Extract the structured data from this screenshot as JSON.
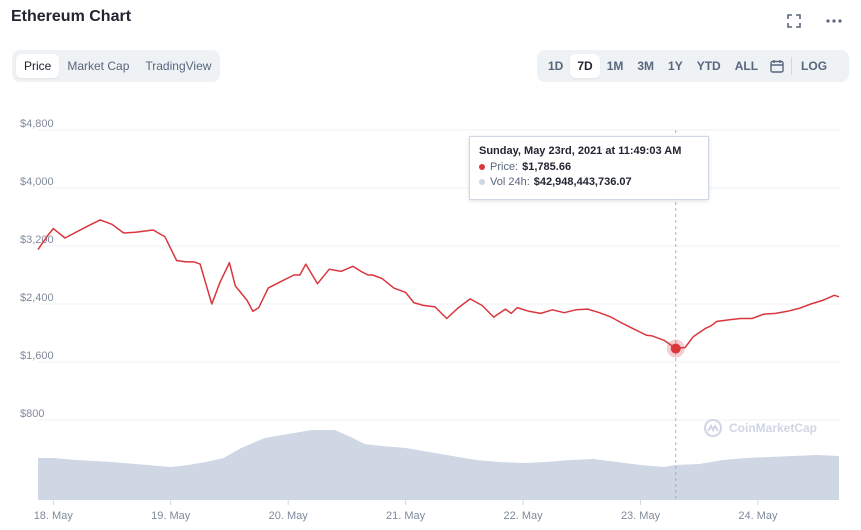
{
  "header": {
    "title": "Ethereum Chart",
    "fullscreen_icon": "fullscreen-icon",
    "more_icon": "more-dots-icon"
  },
  "tabs": [
    {
      "label": "Price",
      "active": true
    },
    {
      "label": "Market Cap",
      "active": false
    },
    {
      "label": "TradingView",
      "active": false
    }
  ],
  "ranges": [
    {
      "label": "1D",
      "active": false
    },
    {
      "label": "7D",
      "active": true
    },
    {
      "label": "1M",
      "active": false
    },
    {
      "label": "3M",
      "active": false
    },
    {
      "label": "1Y",
      "active": false
    },
    {
      "label": "YTD",
      "active": false
    },
    {
      "label": "ALL",
      "active": false
    }
  ],
  "calendar_icon": "calendar-icon",
  "log_label": "LOG",
  "tooltip": {
    "date": "Sunday, May 23rd, 2021 at 11:49:03 AM",
    "price_label": "Price:",
    "price_value": "$1,785.66",
    "vol_label": "Vol 24h:",
    "vol_value": "$42,948,443,736.07"
  },
  "watermark": "CoinMarketCap",
  "colors": {
    "price_line": "#d9363e",
    "volume_fill": "#cfd6e4",
    "grid": "#eff2f5",
    "axis_text": "#808a9d",
    "hover_line": "#a6b0c3"
  },
  "chart_data": {
    "type": "line",
    "y_ticks": [
      "$800",
      "$1,600",
      "$2,400",
      "$3,200",
      "$4,000",
      "$4,800"
    ],
    "y_tick_values": [
      800,
      1600,
      2400,
      3200,
      4000,
      4800
    ],
    "ylim": [
      0,
      5000
    ],
    "x_ticks": [
      "18. May",
      "19. May",
      "20. May",
      "21. May",
      "22. May",
      "23. May",
      "24. May"
    ],
    "x_tick_days": [
      1,
      2,
      3,
      4,
      5,
      6,
      7
    ],
    "xlim": [
      0.87,
      7.69
    ],
    "grid": true,
    "series": [
      {
        "kind": "price",
        "x": [
          0.87,
          0.95,
          1.0,
          1.1,
          1.3,
          1.4,
          1.5,
          1.6,
          1.7,
          1.85,
          1.95,
          2.05,
          2.13,
          2.2,
          2.25,
          2.35,
          2.42,
          2.5,
          2.55,
          2.65,
          2.7,
          2.75,
          2.83,
          2.95,
          3.05,
          3.1,
          3.15,
          3.25,
          3.35,
          3.45,
          3.55,
          3.62,
          3.68,
          3.72,
          3.8,
          3.9,
          4.0,
          4.07,
          4.15,
          4.25,
          4.35,
          4.45,
          4.55,
          4.65,
          4.75,
          4.85,
          4.9,
          4.95,
          5.05,
          5.15,
          5.25,
          5.35,
          5.45,
          5.55,
          5.65,
          5.75,
          5.85,
          5.95,
          6.05,
          6.1,
          6.2,
          6.3,
          6.38,
          6.45,
          6.55,
          6.6,
          6.65,
          6.75,
          6.85,
          6.95,
          7.05,
          7.15,
          7.25,
          7.35,
          7.45,
          7.55,
          7.65,
          7.69
        ],
        "values": [
          3150,
          3340,
          3440,
          3310,
          3480,
          3560,
          3500,
          3380,
          3390,
          3420,
          3330,
          3000,
          2980,
          2980,
          2950,
          2400,
          2700,
          2970,
          2650,
          2450,
          2300,
          2350,
          2620,
          2720,
          2800,
          2800,
          2950,
          2680,
          2880,
          2850,
          2920,
          2850,
          2800,
          2800,
          2750,
          2620,
          2560,
          2420,
          2380,
          2360,
          2200,
          2350,
          2470,
          2380,
          2220,
          2330,
          2270,
          2350,
          2300,
          2270,
          2320,
          2280,
          2320,
          2330,
          2280,
          2220,
          2130,
          2050,
          1970,
          1960,
          1900,
          1785.66,
          1800,
          1950,
          2060,
          2100,
          2160,
          2180,
          2200,
          2200,
          2260,
          2270,
          2300,
          2340,
          2400,
          2450,
          2520,
          2500
        ]
      },
      {
        "kind": "volume",
        "x": [
          0.87,
          1.0,
          1.2,
          1.5,
          1.7,
          1.9,
          2.0,
          2.15,
          2.3,
          2.45,
          2.6,
          2.8,
          3.0,
          3.2,
          3.4,
          3.55,
          3.65,
          3.8,
          4.0,
          4.2,
          4.4,
          4.6,
          4.8,
          5.0,
          5.2,
          5.4,
          5.6,
          5.8,
          6.0,
          6.2,
          6.3,
          6.5,
          6.7,
          6.9,
          7.1,
          7.3,
          7.5,
          7.69
        ],
        "values": [
          42,
          42,
          40,
          38,
          36,
          34,
          33,
          35,
          38,
          42,
          52,
          62,
          66,
          70,
          70,
          62,
          56,
          54,
          52,
          48,
          44,
          40,
          38,
          37,
          38,
          40,
          41,
          38,
          35,
          33,
          35,
          36,
          40,
          42,
          43,
          44,
          45,
          44
        ]
      }
    ],
    "hover": {
      "x": 6.3,
      "value": 1785.66
    }
  }
}
